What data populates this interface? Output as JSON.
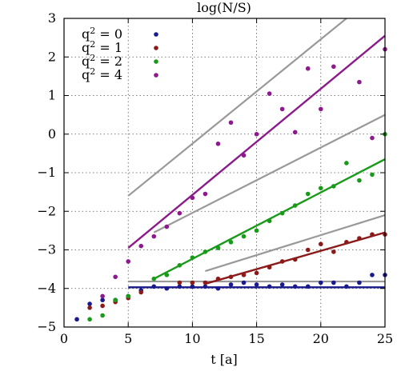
{
  "chart_data": {
    "type": "scatter",
    "title": "log(N/S)",
    "xlabel": "t [a]",
    "ylabel": "",
    "xlim": [
      0,
      25
    ],
    "ylim": [
      -5,
      3
    ],
    "xticks": [
      0,
      5,
      10,
      15,
      20,
      25
    ],
    "yticks": [
      -5,
      -4,
      -3,
      -2,
      -1,
      0,
      1,
      2,
      3
    ],
    "xtick_labels": [
      "0",
      "5",
      "10",
      "15",
      "20",
      "25"
    ],
    "ytick_labels": [
      "−5",
      "−4",
      "−3",
      "−2",
      "−1",
      "0",
      "1",
      "2",
      "3"
    ],
    "grid": true,
    "legend_position": "top-left",
    "series": [
      {
        "name": "q² = 0",
        "label_base": "q",
        "label_exp": "2",
        "label_rest": " = 0",
        "color": "#1a1a8c",
        "points": [
          [
            1,
            -4.8
          ],
          [
            2,
            -4.4
          ],
          [
            3,
            -4.3
          ],
          [
            4,
            -4.3
          ],
          [
            5,
            -4.2
          ],
          [
            6,
            -4.05
          ],
          [
            7,
            -3.95
          ],
          [
            8,
            -4.0
          ],
          [
            9,
            -3.95
          ],
          [
            10,
            -3.95
          ],
          [
            11,
            -3.95
          ],
          [
            12,
            -4.0
          ],
          [
            13,
            -3.9
          ],
          [
            14,
            -3.85
          ],
          [
            15,
            -3.9
          ],
          [
            16,
            -3.95
          ],
          [
            17,
            -3.9
          ],
          [
            18,
            -3.95
          ],
          [
            19,
            -3.95
          ],
          [
            20,
            -3.85
          ],
          [
            21,
            -3.85
          ],
          [
            22,
            -3.95
          ],
          [
            23,
            -3.85
          ],
          [
            24,
            -3.65
          ],
          [
            25,
            -3.65
          ]
        ],
        "fit": [
          [
            5,
            -3.97
          ],
          [
            25,
            -3.97
          ]
        ]
      },
      {
        "name": "q² = 1",
        "label_base": "q",
        "label_exp": "2",
        "label_rest": " = 1",
        "color": "#8b1a1a",
        "points": [
          [
            2,
            -4.5
          ],
          [
            3,
            -4.45
          ],
          [
            4,
            -4.35
          ],
          [
            5,
            -4.25
          ],
          [
            6,
            -4.1
          ],
          [
            9,
            -3.85
          ],
          [
            10,
            -3.85
          ],
          [
            11,
            -3.85
          ],
          [
            12,
            -3.75
          ],
          [
            13,
            -3.7
          ],
          [
            14,
            -3.65
          ],
          [
            15,
            -3.6
          ],
          [
            16,
            -3.45
          ],
          [
            17,
            -3.3
          ],
          [
            18,
            -3.25
          ],
          [
            19,
            -3.0
          ],
          [
            20,
            -2.85
          ],
          [
            21,
            -3.05
          ],
          [
            22,
            -2.8
          ],
          [
            23,
            -2.7
          ],
          [
            24,
            -2.6
          ],
          [
            25,
            -2.6
          ]
        ],
        "fit": [
          [
            11,
            -3.88
          ],
          [
            25,
            -2.55
          ]
        ]
      },
      {
        "name": "q² = 2",
        "label_base": "q",
        "label_exp": "2",
        "label_rest": " = 2",
        "color": "#1a9a1a",
        "points": [
          [
            2,
            -4.8
          ],
          [
            3,
            -4.7
          ],
          [
            4,
            -4.3
          ],
          [
            5,
            -4.2
          ],
          [
            7,
            -3.75
          ],
          [
            8,
            -3.65
          ],
          [
            9,
            -3.4
          ],
          [
            10,
            -3.2
          ],
          [
            11,
            -3.05
          ],
          [
            12,
            -2.95
          ],
          [
            13,
            -2.8
          ],
          [
            14,
            -2.65
          ],
          [
            15,
            -2.5
          ],
          [
            16,
            -2.25
          ],
          [
            17,
            -2.05
          ],
          [
            18,
            -1.85
          ],
          [
            19,
            -1.55
          ],
          [
            20,
            -1.4
          ],
          [
            21,
            -1.35
          ],
          [
            22,
            -0.75
          ],
          [
            23,
            -1.2
          ],
          [
            24,
            -1.05
          ],
          [
            25,
            0.0
          ]
        ],
        "fit": [
          [
            7,
            -3.75
          ],
          [
            25,
            -0.65
          ]
        ]
      },
      {
        "name": "q² = 4",
        "label_base": "q",
        "label_exp": "2",
        "label_rest": " = 4",
        "color": "#8b1a8b",
        "points": [
          [
            3,
            -4.2
          ],
          [
            4,
            -3.7
          ],
          [
            5,
            -3.3
          ],
          [
            6,
            -2.9
          ],
          [
            7,
            -2.65
          ],
          [
            8,
            -2.4
          ],
          [
            9,
            -2.05
          ],
          [
            10,
            -1.65
          ],
          [
            11,
            -1.55
          ],
          [
            12,
            -0.25
          ],
          [
            13,
            0.3
          ],
          [
            14,
            -0.55
          ],
          [
            15,
            -0.0
          ],
          [
            16,
            1.05
          ],
          [
            17,
            0.65
          ],
          [
            18,
            0.05
          ],
          [
            19,
            1.7
          ],
          [
            20,
            0.65
          ],
          [
            21,
            1.75
          ],
          [
            23,
            1.35
          ],
          [
            24,
            -0.1
          ],
          [
            25,
            2.2
          ]
        ],
        "fit": [
          [
            5,
            -2.95
          ],
          [
            25,
            2.55
          ]
        ]
      }
    ],
    "reference_lines": [
      {
        "color": "#999999",
        "points": [
          [
            5,
            -3.82
          ],
          [
            25,
            -3.82
          ]
        ]
      },
      {
        "color": "#999999",
        "points": [
          [
            11,
            -3.55
          ],
          [
            25,
            -2.1
          ]
        ]
      },
      {
        "color": "#999999",
        "points": [
          [
            7,
            -2.55
          ],
          [
            25,
            0.5
          ]
        ]
      },
      {
        "color": "#999999",
        "points": [
          [
            5,
            -1.6
          ],
          [
            22,
            3.0
          ]
        ]
      }
    ]
  }
}
